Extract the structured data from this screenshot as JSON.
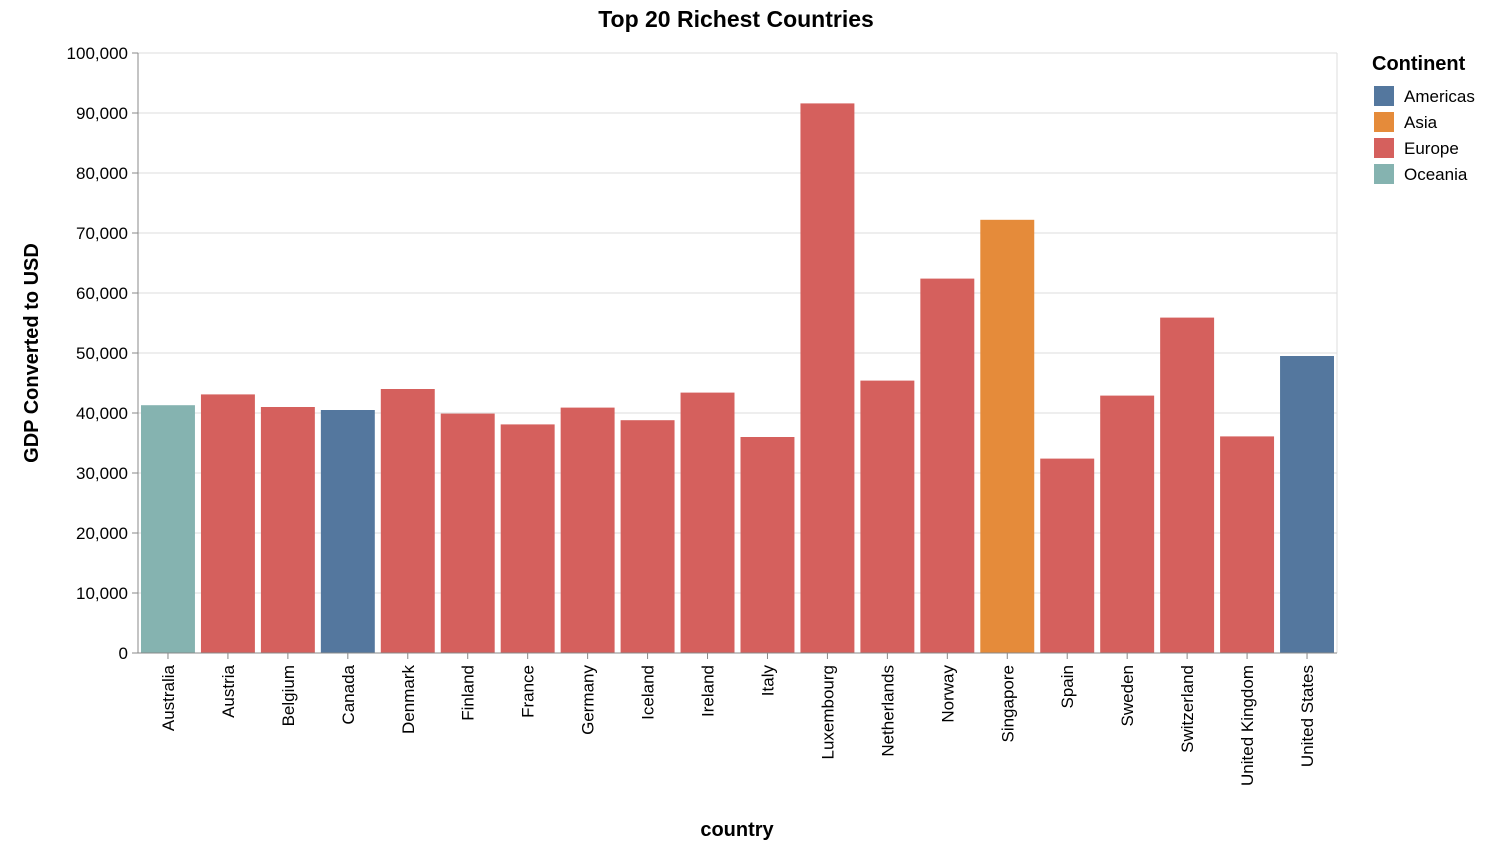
{
  "chart_data": {
    "type": "bar",
    "title": "Top 20 Richest Countries",
    "xlabel": "country",
    "ylabel": "GDP Converted to USD",
    "ylim": [
      0,
      100000
    ],
    "yticks": [
      0,
      10000,
      20000,
      30000,
      40000,
      50000,
      60000,
      70000,
      80000,
      90000,
      100000
    ],
    "ytick_labels": [
      "0",
      "10,000",
      "20,000",
      "30,000",
      "40,000",
      "50,000",
      "60,000",
      "70,000",
      "80,000",
      "90,000",
      "100,000"
    ],
    "grid": true,
    "legend": {
      "title": "Continent",
      "placement": "right",
      "entries": [
        {
          "label": "Americas",
          "color": "#54779e"
        },
        {
          "label": "Asia",
          "color": "#e58b3a"
        },
        {
          "label": "Europe",
          "color": "#d5605d"
        },
        {
          "label": "Oceania",
          "color": "#85b3b0"
        }
      ]
    },
    "categories": [
      "Australia",
      "Austria",
      "Belgium",
      "Canada",
      "Denmark",
      "Finland",
      "France",
      "Germany",
      "Iceland",
      "Ireland",
      "Italy",
      "Luxembourg",
      "Netherlands",
      "Norway",
      "Singapore",
      "Spain",
      "Sweden",
      "Switzerland",
      "United Kingdom",
      "United States"
    ],
    "values": [
      41300,
      43100,
      41000,
      40500,
      44000,
      39900,
      38100,
      40900,
      38800,
      43400,
      36000,
      91600,
      45400,
      62400,
      72200,
      32400,
      42900,
      55900,
      36100,
      49500
    ],
    "continents": [
      "Oceania",
      "Europe",
      "Europe",
      "Americas",
      "Europe",
      "Europe",
      "Europe",
      "Europe",
      "Europe",
      "Europe",
      "Europe",
      "Europe",
      "Europe",
      "Europe",
      "Asia",
      "Europe",
      "Europe",
      "Europe",
      "Europe",
      "Americas"
    ]
  }
}
